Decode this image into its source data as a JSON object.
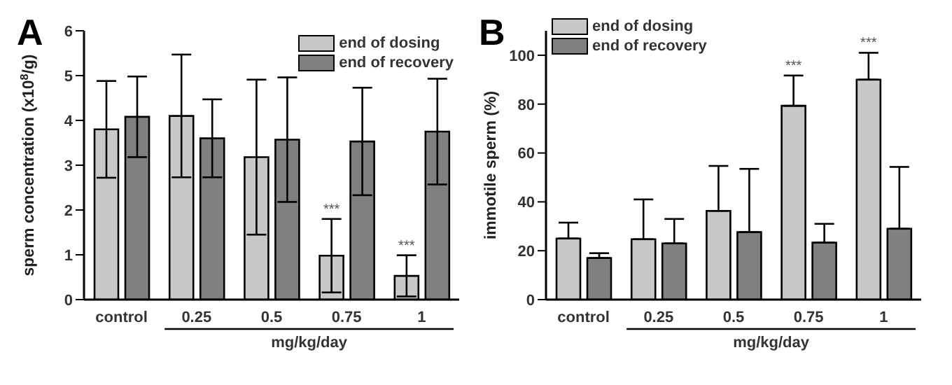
{
  "chart_data": [
    {
      "type": "bar",
      "title": "A",
      "ylabel": "sperm concentration (x10$^{8}$/g)",
      "xlabel": "mg/kg/day",
      "categories": [
        "control",
        "0.25",
        "0.5",
        "0.75",
        "1"
      ],
      "series": [
        {
          "name": "end of dosing",
          "color": "#c8c8c8",
          "values": [
            3.8,
            4.1,
            3.18,
            0.98,
            0.53
          ],
          "errors": [
            1.08,
            1.37,
            1.73,
            0.82,
            0.46
          ]
        },
        {
          "name": "end of recovery",
          "color": "#808080",
          "values": [
            4.08,
            3.6,
            3.57,
            3.53,
            3.75
          ],
          "errors": [
            0.9,
            0.87,
            1.39,
            1.2,
            1.18
          ]
        }
      ],
      "ylim": [
        0,
        6
      ],
      "yticks": [
        0,
        1,
        2,
        3,
        4,
        5,
        6
      ],
      "grid": false,
      "legend": "top right",
      "annotations": [
        {
          "text": "***",
          "x": "0.75",
          "y": 1.8
        },
        {
          "text": "***",
          "x": "1",
          "y": 0.98
        }
      ]
    },
    {
      "type": "bar",
      "title": "B",
      "ylabel": "immotile sperm (%)",
      "xlabel": "mg/kg/day",
      "categories": [
        "control",
        "0.25",
        "0.5",
        "0.75",
        "1"
      ],
      "series": [
        {
          "name": "end of dosing",
          "color": "#c8c8c8",
          "values": [
            25,
            24.7,
            36.3,
            79.3,
            90
          ],
          "errors": [
            [
              25,
              31.5
            ],
            [
              24.7,
              41
            ],
            [
              36.3,
              54.7
            ],
            [
              79.3,
              91.7
            ],
            [
              90,
              101
            ]
          ]
        },
        {
          "name": "end of recovery",
          "color": "#808080",
          "values": [
            17,
            23,
            27.6,
            23.3,
            29
          ],
          "errors": [
            [
              17,
              19
            ],
            [
              23,
              33
            ],
            [
              27.6,
              53.5
            ],
            [
              23.3,
              31
            ],
            [
              29,
              54.3
            ]
          ]
        }
      ],
      "ylim": [
        0,
        110
      ],
      "yticks": [
        0,
        20,
        40,
        60,
        80,
        100
      ],
      "grid": false,
      "legend": "top left",
      "annotations": [
        {
          "text": "***",
          "x": "0.75",
          "y": 91.7
        },
        {
          "text": "***",
          "x": "1",
          "y": 101
        }
      ]
    }
  ]
}
